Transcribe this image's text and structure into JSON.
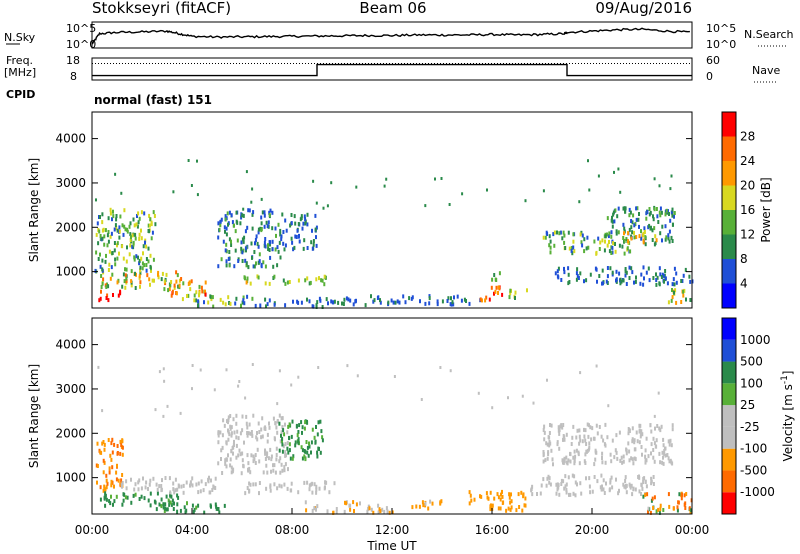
{
  "header": {
    "station": "Stokkseyri (fitACF)",
    "beam": "Beam 06",
    "date": "09/Aug/2016"
  },
  "labels": {
    "nsky": "N.Sky",
    "nsearch": "N.Search",
    "freq_line1": "Freq.",
    "freq_line2": "[MHz]",
    "nave": "Nave",
    "cpid": "CPID",
    "cpid_value": "normal (fast) 151",
    "y_label": "Slant Range [km]",
    "x_label": "Time UT",
    "power_label": "Power [dB]",
    "velocity_label": "Velocity [m s",
    "velocity_label_exp": "-1",
    "velocity_label_end": "]"
  },
  "colors": {
    "power": [
      "#0000ff",
      "#1f4fd6",
      "#2a8a4a",
      "#58b038",
      "#d8d820",
      "#ff9900",
      "#ff6a00",
      "#ff0000"
    ],
    "velocity": [
      "#ff0000",
      "#ff6a00",
      "#ff9900",
      "#bfbfbf",
      "#bfbfbf",
      "#58b038",
      "#2a8a4a",
      "#1f4fd6",
      "#0000ff"
    ]
  },
  "chart_data": [
    {
      "type": "line",
      "title": "N.Sky / N.Search",
      "y_ticks": [
        "10^5",
        "10^0"
      ],
      "y_ticks_right": [
        "10^5",
        "10^0"
      ],
      "x_range_hours": [
        0,
        24
      ],
      "series": [
        {
          "name": "N.Sky",
          "x": [
            0,
            0.3,
            1,
            2,
            3,
            3.5,
            4,
            5,
            6,
            7,
            8,
            9,
            10,
            11,
            12,
            13,
            14,
            15,
            16,
            17,
            18,
            18.9,
            19,
            20,
            21,
            22,
            23,
            24
          ],
          "y": [
            0.15,
            0.55,
            0.6,
            0.62,
            0.65,
            0.55,
            0.45,
            0.42,
            0.43,
            0.44,
            0.45,
            0.46,
            0.47,
            0.48,
            0.48,
            0.5,
            0.5,
            0.5,
            0.52,
            0.5,
            0.52,
            0.55,
            0.6,
            0.65,
            0.7,
            0.72,
            0.65,
            0.6
          ]
        }
      ]
    },
    {
      "type": "line",
      "title": "Freq. / Nave",
      "y_ticks_left": [
        "18",
        "8"
      ],
      "y_ticks_right": [
        "60",
        "0"
      ],
      "x_range_hours": [
        0,
        24
      ],
      "series": [
        {
          "name": "Nave",
          "x": [
            0,
            24
          ],
          "y": [
            0.75,
            0.75
          ],
          "style": "dotted"
        },
        {
          "name": "Freq.",
          "x": [
            0,
            9,
            9,
            19,
            19,
            24
          ],
          "y": [
            0.2,
            0.2,
            0.7,
            0.7,
            0.2,
            0.2
          ]
        }
      ]
    },
    {
      "type": "heatmap",
      "name": "Power",
      "xlabel": "",
      "ylabel": "Slant Range [km]",
      "x_range_hours": [
        0,
        24
      ],
      "ylim": [
        180,
        4600
      ],
      "y_ticks": [
        "1000",
        "2000",
        "3000",
        "4000"
      ],
      "y_tick_values": [
        1000,
        2000,
        3000,
        4000
      ],
      "colorbar_ticks": [
        "4",
        "8",
        "12",
        "16",
        "20",
        "24",
        "28"
      ],
      "colorbar_tick_values": [
        4,
        8,
        12,
        16,
        20,
        24,
        28
      ],
      "colorbar_range": [
        0,
        32
      ],
      "clusters": [
        {
          "t": [
            0.2,
            1.1
          ],
          "r": [
            350,
            600
          ],
          "v": [
            26,
            30
          ]
        },
        {
          "t": [
            0.3,
            3.6
          ],
          "r": [
            600,
            1000
          ],
          "v": [
            10,
            28
          ]
        },
        {
          "t": [
            0.1,
            2.5
          ],
          "r": [
            1000,
            2400
          ],
          "v": [
            6,
            20
          ]
        },
        {
          "t": [
            3.0,
            4.6
          ],
          "r": [
            350,
            800
          ],
          "v": [
            14,
            30
          ]
        },
        {
          "t": [
            4.0,
            6.5
          ],
          "r": [
            200,
            450
          ],
          "v": [
            6,
            18
          ]
        },
        {
          "t": [
            5.0,
            7.5
          ],
          "r": [
            1100,
            2400
          ],
          "v": [
            4,
            14
          ]
        },
        {
          "t": [
            6.0,
            7.3
          ],
          "r": [
            700,
            900
          ],
          "v": [
            10,
            22
          ]
        },
        {
          "t": [
            7.5,
            9.0
          ],
          "r": [
            1500,
            2300
          ],
          "v": [
            4,
            12
          ]
        },
        {
          "t": [
            7.6,
            9.5
          ],
          "r": [
            700,
            900
          ],
          "v": [
            8,
            18
          ]
        },
        {
          "t": [
            6.5,
            11.0
          ],
          "r": [
            200,
            400
          ],
          "v": [
            4,
            12
          ]
        },
        {
          "t": [
            11.0,
            15.5
          ],
          "r": [
            250,
            450
          ],
          "v": [
            4,
            10
          ]
        },
        {
          "t": [
            15.5,
            16.5
          ],
          "r": [
            350,
            650
          ],
          "v": [
            22,
            30
          ]
        },
        {
          "t": [
            16.6,
            17.4
          ],
          "r": [
            380,
            600
          ],
          "v": [
            10,
            18
          ]
        },
        {
          "t": [
            15.8,
            16.3
          ],
          "r": [
            800,
            1000
          ],
          "v": [
            8,
            16
          ]
        },
        {
          "t": [
            18.0,
            21.5
          ],
          "r": [
            1400,
            1900
          ],
          "v": [
            6,
            18
          ]
        },
        {
          "t": [
            20.5,
            23.3
          ],
          "r": [
            1600,
            2450
          ],
          "v": [
            6,
            14
          ]
        },
        {
          "t": [
            21.0,
            22.6
          ],
          "r": [
            1650,
            1900
          ],
          "v": [
            14,
            24
          ]
        },
        {
          "t": [
            18.5,
            24.0
          ],
          "r": [
            700,
            1100
          ],
          "v": [
            4,
            12
          ]
        },
        {
          "t": [
            23.0,
            24.0
          ],
          "r": [
            250,
            600
          ],
          "v": [
            8,
            24
          ]
        }
      ]
    },
    {
      "type": "heatmap",
      "name": "Velocity",
      "xlabel": "Time UT",
      "ylabel": "Slant Range [km]",
      "x_range_hours": [
        0,
        24
      ],
      "ylim": [
        180,
        4600
      ],
      "y_ticks": [
        "1000",
        "2000",
        "3000",
        "4000"
      ],
      "y_tick_values": [
        1000,
        2000,
        3000,
        4000
      ],
      "x_ticks": [
        "00:00",
        "04:00",
        "08:00",
        "12:00",
        "16:00",
        "20:00",
        "00:00"
      ],
      "x_tick_values": [
        0,
        4,
        8,
        12,
        16,
        20,
        24
      ],
      "colorbar_ticks": [
        "-1000",
        "-500",
        "-100",
        "-25",
        "25",
        "100",
        "500",
        "1000"
      ],
      "clusters": [
        {
          "t": [
            0.1,
            1.2
          ],
          "r": [
            700,
            1900
          ],
          "v": [
            -700,
            -150
          ]
        },
        {
          "t": [
            0.3,
            3.5
          ],
          "r": [
            350,
            650
          ],
          "v": [
            50,
            500
          ]
        },
        {
          "t": [
            1.0,
            5.0
          ],
          "r": [
            650,
            1000
          ],
          "v": [
            -20,
            20
          ]
        },
        {
          "t": [
            2.5,
            5.5
          ],
          "r": [
            200,
            450
          ],
          "v": [
            40,
            400
          ]
        },
        {
          "t": [
            5.0,
            7.8
          ],
          "r": [
            1100,
            2400
          ],
          "v": [
            -20,
            20
          ]
        },
        {
          "t": [
            7.4,
            9.2
          ],
          "r": [
            1400,
            2300
          ],
          "v": [
            40,
            300
          ]
        },
        {
          "t": [
            6.0,
            9.8
          ],
          "r": [
            650,
            900
          ],
          "v": [
            -20,
            20
          ]
        },
        {
          "t": [
            8.5,
            12.0
          ],
          "r": [
            200,
            450
          ],
          "v": [
            -150,
            -40
          ]
        },
        {
          "t": [
            12.5,
            14.0
          ],
          "r": [
            300,
            500
          ],
          "v": [
            -300,
            -80
          ]
        },
        {
          "t": [
            15.0,
            17.3
          ],
          "r": [
            250,
            700
          ],
          "v": [
            -400,
            -90
          ]
        },
        {
          "t": [
            18.0,
            23.2
          ],
          "r": [
            1300,
            2200
          ],
          "v": [
            -20,
            20
          ]
        },
        {
          "t": [
            17.5,
            22.5
          ],
          "r": [
            600,
            1050
          ],
          "v": [
            -20,
            20
          ]
        },
        {
          "t": [
            22.0,
            24.0
          ],
          "r": [
            200,
            650
          ],
          "v": [
            -800,
            300
          ]
        }
      ]
    }
  ]
}
